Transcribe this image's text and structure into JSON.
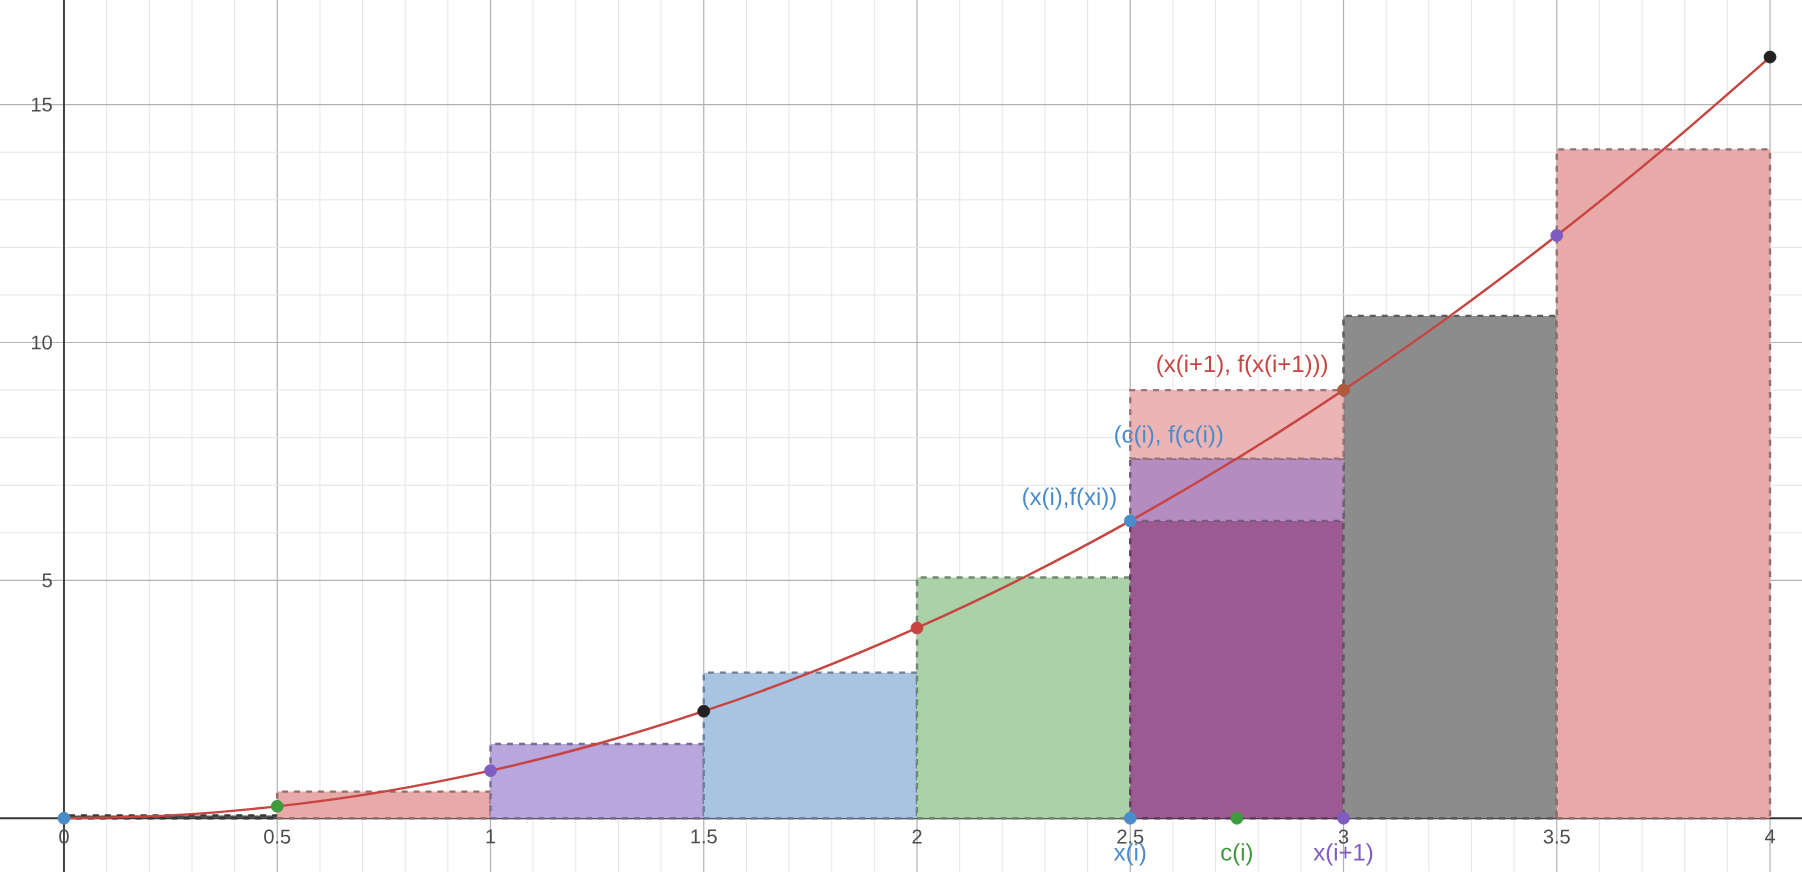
{
  "chart_data": {
    "type": "bar",
    "stacked": true,
    "xlim": [
      -0.15,
      4.075
    ],
    "ylim": [
      -1.13,
      17.2
    ],
    "xticks": [
      0,
      0.5,
      1,
      1.5,
      2,
      2.5,
      3,
      3.5,
      4
    ],
    "yticks": [
      5,
      10,
      15
    ],
    "grid": true,
    "line_style": "dashed",
    "x": [
      0.25,
      0.75,
      1.25,
      1.75,
      2.25,
      2.75,
      3.25,
      3.75
    ],
    "series": [
      {
        "values": [
          0.06,
          0.56,
          1.56,
          3.06,
          5.06,
          6.25,
          10.56,
          14.06
        ],
        "colors": [
          "#555555",
          "#e8a9a9",
          "#b9a6dc",
          "#a9c4e2",
          "#abd1a9",
          "#9b5a91",
          "#8c8c8c",
          "#e8a9a9"
        ]
      },
      {
        "values": [
          null,
          null,
          null,
          null,
          null,
          1.31,
          null,
          null
        ],
        "color": "#b48cc0"
      },
      {
        "values": [
          null,
          null,
          null,
          null,
          null,
          1.44,
          null,
          null
        ],
        "color": "#ecb4b4"
      },
      {
        "type": "line",
        "x": [
          0,
          0.25,
          0.5,
          0.75,
          1,
          1.25,
          1.5,
          1.75,
          2,
          2.25,
          2.5,
          2.75,
          3,
          3.25,
          3.5,
          3.75,
          4
        ],
        "values": [
          0,
          0.06,
          0.25,
          0.56,
          1,
          1.56,
          2.25,
          3.06,
          4,
          5.06,
          6.25,
          7.56,
          9,
          10.56,
          12.25,
          14.06,
          16
        ],
        "color": "#c74440",
        "line_style": "solid"
      },
      {
        "type": "scatter",
        "x": [
          0,
          0.5,
          1,
          1.5,
          2,
          2.5,
          3,
          3.5,
          4
        ],
        "values": [
          0,
          0.25,
          1,
          2.25,
          4,
          6.25,
          9,
          12.25,
          16
        ],
        "colors": [
          "#4a8bc9",
          "#3d9a3d",
          "#7e5cc1",
          "#222222",
          "#c74440",
          "#4a8bc9",
          "#b05a3c",
          "#7e5cc1",
          "#222222"
        ],
        "marker": "circle"
      },
      {
        "type": "scatter",
        "x": [
          2.5,
          2.75,
          3
        ],
        "values": [
          0,
          0,
          0
        ],
        "colors": [
          "#4a8bc9",
          "#3d9a3d",
          "#7e5cc1"
        ],
        "marker": "circle"
      }
    ],
    "annotations": [
      {
        "text": "(x(i),f(xi))",
        "x": 2.5,
        "y": 6.25
      },
      {
        "text": "(c(i), f(c(i))",
        "x": 2.75,
        "y": 7.56
      },
      {
        "text": "(x(i+1), f(x(i+1)))",
        "x": 3,
        "y": 9
      },
      {
        "text": "x(i)",
        "x": 2.5,
        "y": 0
      },
      {
        "text": "c(i)",
        "x": 2.75,
        "y": 0
      },
      {
        "text": "x(i+1)",
        "x": 3,
        "y": 0
      }
    ]
  }
}
